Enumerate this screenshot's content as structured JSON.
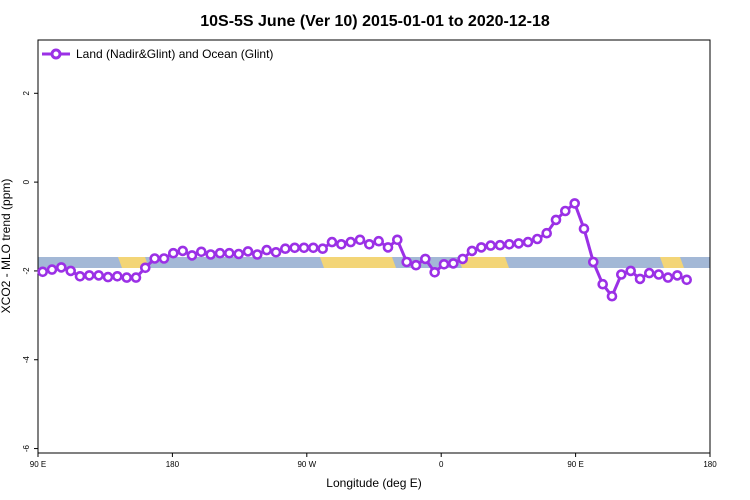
{
  "chart_data": {
    "type": "line",
    "title": "10S-5S June (Ver 10)   2015-01-01 to 2020-12-18",
    "xlabel": "Longitude (deg E)",
    "ylabel": "XCO2 - MLO trend (ppm)",
    "xlim": [
      90,
      450
    ],
    "ylim": [
      -6.1,
      3.2
    ],
    "xticks": [
      {
        "value": 90,
        "label": "90 E"
      },
      {
        "value": 162,
        "label": "180"
      },
      {
        "value": 234,
        "label": "90 W"
      },
      {
        "value": 306,
        "label": "0"
      },
      {
        "value": 378,
        "label": "90 E"
      },
      {
        "value": 450,
        "label": "180"
      }
    ],
    "yticks": [
      {
        "value": 2,
        "label": "2"
      },
      {
        "value": 0,
        "label": "0"
      },
      {
        "value": -2,
        "label": "-2"
      },
      {
        "value": -4,
        "label": "-4"
      },
      {
        "value": -6,
        "label": "-6"
      }
    ],
    "legend_position": "top-left",
    "series": [
      {
        "name": "Land (Nadir&Glint) and Ocean (Glint)",
        "color": "#9B30E6",
        "points": [
          [
            92.5,
            -2.02
          ],
          [
            97.5,
            -1.97
          ],
          [
            102.5,
            -1.92
          ],
          [
            107.5,
            -2.0
          ],
          [
            112.5,
            -2.12
          ],
          [
            117.5,
            -2.1
          ],
          [
            122.5,
            -2.1
          ],
          [
            127.5,
            -2.14
          ],
          [
            132.5,
            -2.12
          ],
          [
            137.5,
            -2.15
          ],
          [
            142.5,
            -2.15
          ],
          [
            147.5,
            -1.93
          ],
          [
            152.5,
            -1.72
          ],
          [
            157.5,
            -1.72
          ],
          [
            162.5,
            -1.6
          ],
          [
            167.5,
            -1.55
          ],
          [
            172.5,
            -1.65
          ],
          [
            177.5,
            -1.57
          ],
          [
            182.5,
            -1.63
          ],
          [
            187.5,
            -1.6
          ],
          [
            192.5,
            -1.6
          ],
          [
            197.5,
            -1.62
          ],
          [
            202.5,
            -1.56
          ],
          [
            207.5,
            -1.63
          ],
          [
            212.5,
            -1.53
          ],
          [
            217.5,
            -1.58
          ],
          [
            222.5,
            -1.5
          ],
          [
            227.5,
            -1.48
          ],
          [
            232.5,
            -1.48
          ],
          [
            237.5,
            -1.48
          ],
          [
            242.5,
            -1.5
          ],
          [
            247.5,
            -1.35
          ],
          [
            252.5,
            -1.4
          ],
          [
            257.5,
            -1.35
          ],
          [
            262.5,
            -1.3
          ],
          [
            267.5,
            -1.4
          ],
          [
            272.5,
            -1.33
          ],
          [
            277.5,
            -1.47
          ],
          [
            282.5,
            -1.3
          ],
          [
            287.5,
            -1.8
          ],
          [
            292.5,
            -1.87
          ],
          [
            297.5,
            -1.73
          ],
          [
            302.5,
            -2.03
          ],
          [
            307.5,
            -1.85
          ],
          [
            312.5,
            -1.83
          ],
          [
            317.5,
            -1.73
          ],
          [
            322.5,
            -1.55
          ],
          [
            327.5,
            -1.47
          ],
          [
            332.5,
            -1.43
          ],
          [
            337.5,
            -1.42
          ],
          [
            342.5,
            -1.4
          ],
          [
            347.5,
            -1.38
          ],
          [
            352.5,
            -1.35
          ],
          [
            357.5,
            -1.28
          ],
          [
            362.5,
            -1.15
          ],
          [
            367.5,
            -0.85
          ],
          [
            372.5,
            -0.65
          ],
          [
            377.5,
            -0.48
          ],
          [
            382.5,
            -1.05
          ],
          [
            387.5,
            -1.8
          ],
          [
            392.5,
            -2.3
          ],
          [
            397.5,
            -2.57
          ],
          [
            402.5,
            -2.08
          ],
          [
            407.5,
            -2.0
          ],
          [
            412.5,
            -2.18
          ],
          [
            417.5,
            -2.05
          ],
          [
            422.5,
            -2.08
          ],
          [
            427.5,
            -2.15
          ],
          [
            432.5,
            -2.1
          ],
          [
            437.5,
            -2.2
          ]
        ]
      }
    ]
  }
}
